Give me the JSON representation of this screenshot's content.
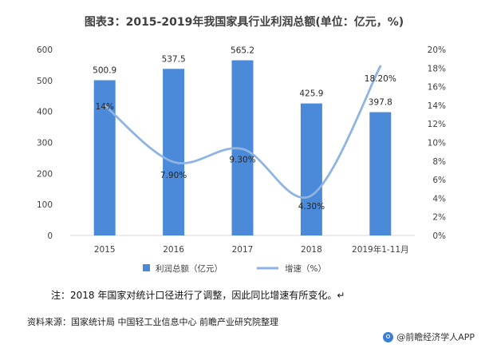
{
  "title": "图表3：2015-2019年我国家具行业利润总额(单位：亿元，%)",
  "chart_data": {
    "type": "bar+line",
    "title": "图表3：2015-2019年我国家具行业利润总额(单位：亿元，%)",
    "categories": [
      "2015",
      "2016",
      "2017",
      "2018",
      "2019年1-11月"
    ],
    "series": [
      {
        "name": "利润总额（亿元）",
        "type": "bar",
        "axis": "left",
        "values": [
          500.9,
          537.5,
          565.2,
          425.9,
          397.8
        ],
        "labels": [
          "500.9",
          "537.5",
          "565.2",
          "425.9",
          "397.8"
        ],
        "color": "#4a8ad8"
      },
      {
        "name": "增速（%）",
        "type": "line",
        "axis": "right",
        "values": [
          14,
          7.9,
          9.3,
          4.3,
          18.2
        ],
        "labels": [
          "14%",
          "7.90%",
          "9.30%",
          "4.30%",
          "18.20%"
        ],
        "color": "#8fb4e3"
      }
    ],
    "y_left": {
      "min": 0,
      "max": 600,
      "ticks": [
        "0",
        "100",
        "200",
        "300",
        "400",
        "500",
        "600"
      ]
    },
    "y_right": {
      "min": 0,
      "max": 20,
      "ticks": [
        "0%",
        "2%",
        "4%",
        "6%",
        "8%",
        "10%",
        "12%",
        "14%",
        "16%",
        "18%",
        "20%"
      ]
    },
    "legend": [
      "利润总额（亿元）",
      "增速（%）"
    ],
    "legend_position": "bottom"
  },
  "note": "注：2018 年国家对统计口径进行了调整，因此同比增速有所变化。↵",
  "source": "资料来源：国家统计局 中国轻工业信息中心 前瞻产业研究院整理",
  "brand": "@前瞻经济学人APP"
}
